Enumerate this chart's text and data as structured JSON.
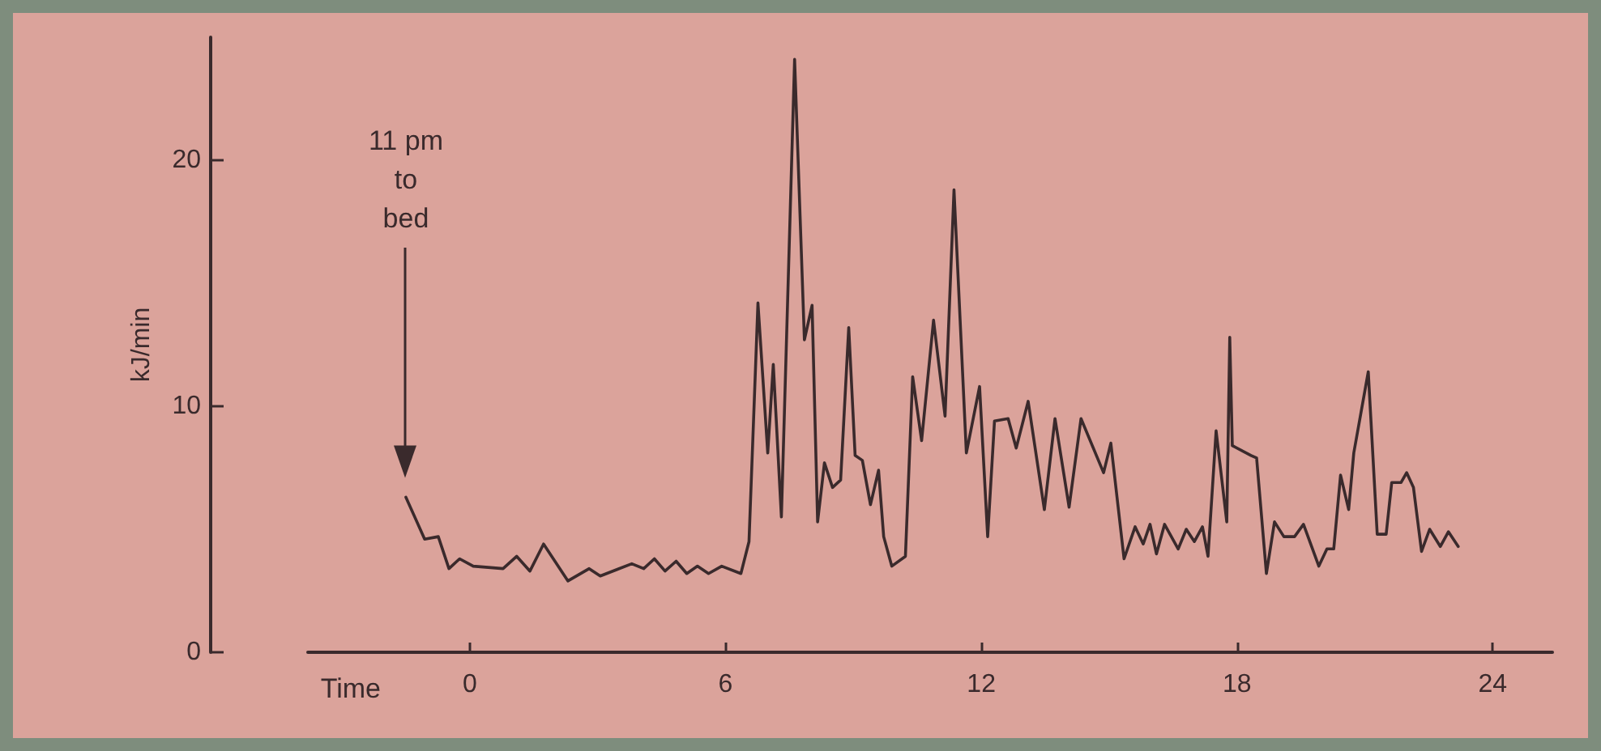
{
  "chart_data": {
    "type": "line",
    "xlabel": "Time",
    "ylabel": "kJ/min",
    "annotations": [
      "11 pm\nto\nbed"
    ],
    "xlim": [
      -3.8,
      25.4
    ],
    "xticks": [
      0,
      6,
      12,
      18,
      24
    ],
    "ylim": [
      0,
      25
    ],
    "yticks": [
      0,
      10,
      20
    ],
    "grid": false,
    "marker": "none",
    "line_style": "solid",
    "series": [
      {
        "color": "#3a2a2c",
        "x": [
          -1.5,
          -1.06,
          -0.74,
          -0.49,
          -0.24,
          0.08,
          0.78,
          1.1,
          1.41,
          1.73,
          2.3,
          2.8,
          3.06,
          3.8,
          4.08,
          4.33,
          4.58,
          4.84,
          5.09,
          5.34,
          5.6,
          5.91,
          6.36,
          6.55,
          6.76,
          6.99,
          7.12,
          7.31,
          7.62,
          7.85,
          8.03,
          8.16,
          8.32,
          8.51,
          8.7,
          8.89,
          9.04,
          9.21,
          9.4,
          9.59,
          9.71,
          9.9,
          10.22,
          10.39,
          10.6,
          10.88,
          11.15,
          11.36,
          11.65,
          11.96,
          12.15,
          12.31,
          12.63,
          12.82,
          13.1,
          13.48,
          13.73,
          14.06,
          14.34,
          14.87,
          15.04,
          15.35,
          15.61,
          15.8,
          15.96,
          16.11,
          16.3,
          16.62,
          16.81,
          17.0,
          17.19,
          17.32,
          17.51,
          17.76,
          17.83,
          17.89,
          18.33,
          18.46,
          18.69,
          18.88,
          19.1,
          19.35,
          19.56,
          19.92,
          20.11,
          20.27,
          20.43,
          20.62,
          20.74,
          21.08,
          21.29,
          21.5,
          21.63,
          21.85,
          21.98,
          22.14,
          22.33,
          22.52,
          22.77,
          22.96,
          23.19
        ],
        "values": [
          6.3,
          4.6,
          4.7,
          3.4,
          3.8,
          3.5,
          3.4,
          3.9,
          3.3,
          4.4,
          2.9,
          3.4,
          3.1,
          3.6,
          3.4,
          3.8,
          3.3,
          3.7,
          3.2,
          3.5,
          3.2,
          3.5,
          3.2,
          4.5,
          14.2,
          8.1,
          11.7,
          5.5,
          24.1,
          12.7,
          14.1,
          5.3,
          7.7,
          6.7,
          7.0,
          13.2,
          8.0,
          7.8,
          6.0,
          7.4,
          4.7,
          3.5,
          3.9,
          11.2,
          8.6,
          13.5,
          9.6,
          18.8,
          8.1,
          10.8,
          4.7,
          9.4,
          9.5,
          8.3,
          10.2,
          5.8,
          9.5,
          5.9,
          9.5,
          7.3,
          8.5,
          3.8,
          5.1,
          4.4,
          5.2,
          4.0,
          5.2,
          4.2,
          5.0,
          4.5,
          5.1,
          3.9,
          9.0,
          5.3,
          12.8,
          8.4,
          8.0,
          7.9,
          3.2,
          5.3,
          4.7,
          4.7,
          5.2,
          3.5,
          4.2,
          4.2,
          7.2,
          5.8,
          8.1,
          11.4,
          4.8,
          4.8,
          6.9,
          6.9,
          7.3,
          6.7,
          4.1,
          5.0,
          4.3,
          4.9,
          4.3
        ]
      }
    ]
  }
}
